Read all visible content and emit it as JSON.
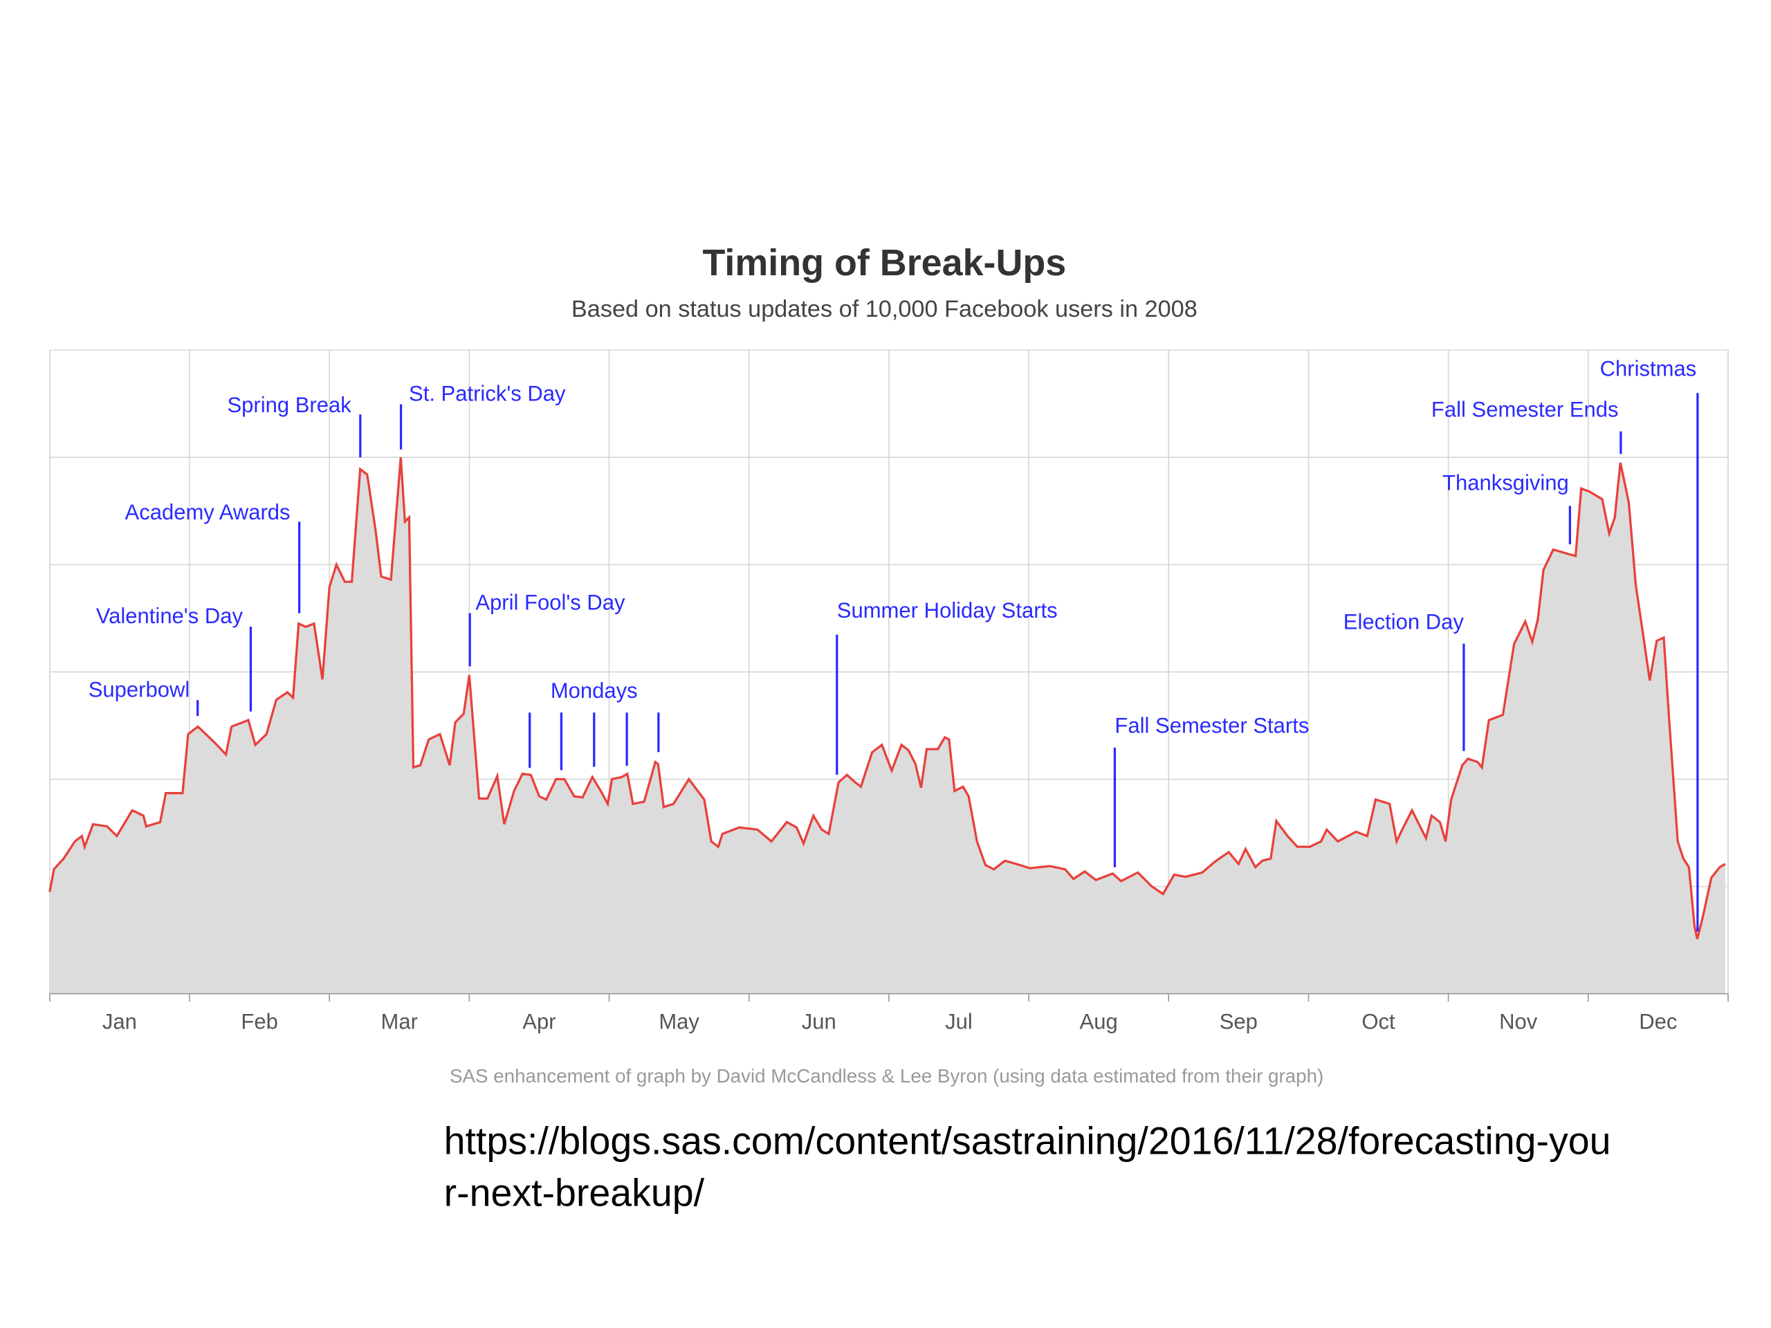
{
  "chart_data": {
    "type": "area",
    "title": "Timing of Break-Ups",
    "subtitle": "Based on status updates of 10,000 Facebook users in 2008",
    "footnote": "SAS enhancement of graph by David McCandless & Lee Byron (using data estimated from their graph)",
    "color": "#e8413c",
    "fill_color": "#dcdcdc",
    "grid": true,
    "xlim": [
      0,
      12
    ],
    "ylim": [
      0,
      6
    ],
    "yticks": [
      1,
      2,
      3,
      4,
      5
    ],
    "xticks": [
      {
        "value": 0.5,
        "label": "Jan"
      },
      {
        "value": 1.5,
        "label": "Feb"
      },
      {
        "value": 2.5,
        "label": "Mar"
      },
      {
        "value": 3.5,
        "label": "Apr"
      },
      {
        "value": 4.5,
        "label": "May"
      },
      {
        "value": 5.5,
        "label": "Jun"
      },
      {
        "value": 6.5,
        "label": "Jul"
      },
      {
        "value": 7.5,
        "label": "Aug"
      },
      {
        "value": 8.5,
        "label": "Sep"
      },
      {
        "value": 9.5,
        "label": "Oct"
      },
      {
        "value": 10.5,
        "label": "Nov"
      },
      {
        "value": 11.5,
        "label": "Dec"
      }
    ],
    "x": [
      0,
      0.03,
      0.1,
      0.18,
      0.23,
      0.25,
      0.31,
      0.41,
      0.48,
      0.59,
      0.67,
      0.69,
      0.79,
      0.83,
      0.95,
      0.99,
      1.06,
      1.18,
      1.26,
      1.3,
      1.42,
      1.47,
      1.55,
      1.62,
      1.7,
      1.74,
      1.78,
      1.83,
      1.89,
      1.95,
      2.0,
      2.05,
      2.11,
      2.16,
      2.22,
      2.27,
      2.33,
      2.37,
      2.44,
      2.51,
      2.54,
      2.57,
      2.6,
      2.65,
      2.71,
      2.79,
      2.86,
      2.9,
      2.96,
      3.0,
      3.07,
      3.13,
      3.2,
      3.25,
      3.32,
      3.38,
      3.44,
      3.5,
      3.55,
      3.62,
      3.68,
      3.75,
      3.81,
      3.88,
      3.94,
      3.99,
      4.02,
      4.09,
      4.13,
      4.17,
      4.25,
      4.33,
      4.35,
      4.39,
      4.46,
      4.57,
      4.68,
      4.73,
      4.78,
      4.81,
      4.93,
      5.06,
      5.16,
      5.27,
      5.34,
      5.39,
      5.46,
      5.52,
      5.57,
      5.64,
      5.7,
      5.75,
      5.8,
      5.88,
      5.95,
      6.02,
      6.09,
      6.14,
      6.19,
      6.23,
      6.27,
      6.35,
      6.4,
      6.43,
      6.47,
      6.53,
      6.57,
      6.63,
      6.69,
      6.75,
      6.83,
      6.91,
      7.01,
      7.15,
      7.26,
      7.32,
      7.4,
      7.48,
      7.6,
      7.66,
      7.78,
      7.88,
      7.96,
      8.04,
      8.12,
      8.24,
      8.33,
      8.43,
      8.5,
      8.55,
      8.62,
      8.67,
      8.73,
      8.77,
      8.85,
      8.92,
      9.01,
      9.09,
      9.13,
      9.21,
      9.34,
      9.42,
      9.48,
      9.58,
      9.63,
      9.67,
      9.74,
      9.84,
      9.88,
      9.94,
      9.98,
      10.02,
      10.1,
      10.14,
      10.21,
      10.24,
      10.29,
      10.39,
      10.47,
      10.55,
      10.6,
      10.64,
      10.68,
      10.75,
      10.83,
      10.91,
      10.95,
      11.01,
      11.1,
      11.15,
      11.19,
      11.23,
      11.29,
      11.34,
      11.39,
      11.44,
      11.49,
      11.54,
      11.58,
      11.64,
      11.68,
      11.72,
      11.76,
      11.78,
      11.82,
      11.88,
      11.94,
      11.98
    ],
    "values": [
      0.95,
      1.16,
      1.26,
      1.42,
      1.47,
      1.37,
      1.58,
      1.56,
      1.47,
      1.71,
      1.66,
      1.56,
      1.6,
      1.87,
      1.87,
      2.42,
      2.49,
      2.34,
      2.23,
      2.49,
      2.55,
      2.32,
      2.42,
      2.74,
      2.81,
      2.76,
      3.45,
      3.42,
      3.45,
      2.93,
      3.79,
      4.0,
      3.84,
      3.84,
      4.89,
      4.84,
      4.32,
      3.89,
      3.86,
      5.0,
      4.4,
      4.44,
      2.11,
      2.13,
      2.37,
      2.42,
      2.13,
      2.53,
      2.61,
      2.97,
      1.82,
      1.82,
      2.03,
      1.58,
      1.89,
      2.05,
      2.04,
      1.84,
      1.81,
      2.0,
      2.0,
      1.84,
      1.83,
      2.02,
      1.89,
      1.77,
      2.0,
      2.02,
      2.05,
      1.77,
      1.79,
      2.16,
      2.14,
      1.74,
      1.77,
      2.0,
      1.81,
      1.42,
      1.37,
      1.49,
      1.55,
      1.53,
      1.42,
      1.6,
      1.55,
      1.4,
      1.66,
      1.53,
      1.49,
      1.97,
      2.04,
      1.98,
      1.93,
      2.25,
      2.32,
      2.08,
      2.32,
      2.27,
      2.14,
      1.92,
      2.28,
      2.28,
      2.39,
      2.37,
      1.89,
      1.93,
      1.84,
      1.42,
      1.2,
      1.16,
      1.24,
      1.21,
      1.17,
      1.19,
      1.16,
      1.07,
      1.14,
      1.06,
      1.12,
      1.05,
      1.13,
      1.0,
      0.93,
      1.11,
      1.09,
      1.13,
      1.23,
      1.32,
      1.21,
      1.35,
      1.18,
      1.24,
      1.26,
      1.61,
      1.47,
      1.37,
      1.37,
      1.42,
      1.53,
      1.42,
      1.51,
      1.47,
      1.81,
      1.77,
      1.42,
      1.53,
      1.71,
      1.45,
      1.66,
      1.6,
      1.42,
      1.81,
      2.13,
      2.19,
      2.16,
      2.11,
      2.55,
      2.6,
      3.26,
      3.47,
      3.28,
      3.49,
      3.95,
      4.14,
      4.11,
      4.08,
      4.71,
      4.68,
      4.61,
      4.29,
      4.44,
      4.95,
      4.58,
      3.81,
      3.37,
      2.92,
      3.29,
      3.32,
      2.53,
      1.42,
      1.26,
      1.18,
      0.63,
      0.51,
      0.72,
      1.08,
      1.18,
      1.21
    ],
    "annotations": [
      "Superbowl",
      "Valentine's Day",
      "Academy Awards",
      "Spring Break",
      "St. Patrick's Day",
      "April Fool's Day",
      "Mondays",
      "Summer Holiday Starts",
      "Fall Semester Starts",
      "Election Day",
      "Thanksgiving",
      "Fall Semester Ends",
      "Christmas"
    ]
  },
  "source_url": "https://blogs.sas.com/content/sastraining/2016/11/28/forecasting-your-next-breakup/"
}
